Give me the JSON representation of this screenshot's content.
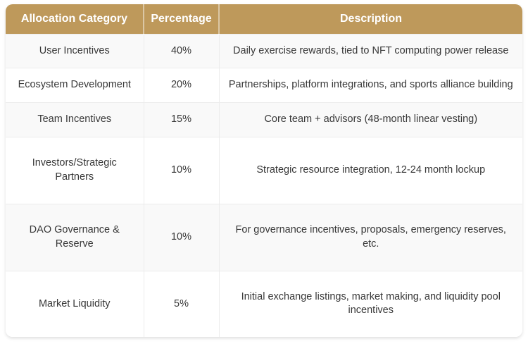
{
  "chart_data": {
    "type": "table",
    "columns": [
      "Allocation Category",
      "Percentage",
      "Description"
    ],
    "rows": [
      {
        "category": "User Incentives",
        "percentage": "40%",
        "description": "Daily exercise rewards, tied to NFT computing power release"
      },
      {
        "category": "Ecosystem Development",
        "percentage": "20%",
        "description": "Partnerships, platform integrations, and sports alliance building"
      },
      {
        "category": "Team Incentives",
        "percentage": "15%",
        "description": "Core team + advisors (48-month linear vesting)"
      },
      {
        "category": "Investors/Strategic Partners",
        "percentage": "10%",
        "description": "Strategic resource integration, 12-24 month lockup"
      },
      {
        "category": "DAO Governance & Reserve",
        "percentage": "10%",
        "description": "For governance incentives, proposals, emergency reserves, etc."
      },
      {
        "category": "Market Liquidity",
        "percentage": "5%",
        "description": "Initial exchange listings, market making, and liquidity pool incentives"
      }
    ]
  },
  "colors": {
    "header_bg": "#be995b",
    "header_text": "#ffffff",
    "body_text": "#383838",
    "border": "#ececec",
    "row_alt_bg": "#f9f9f9"
  }
}
